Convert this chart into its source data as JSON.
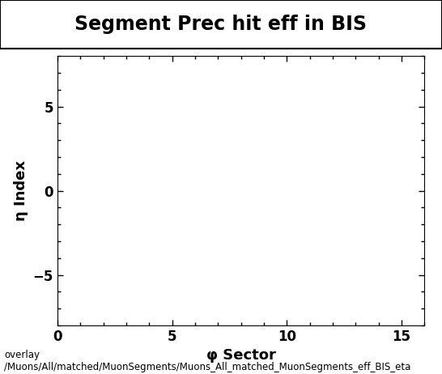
{
  "title": "Segment Prec hit eff in BIS",
  "xlabel": "φ Sector",
  "ylabel": "η Index",
  "xlim": [
    0,
    16
  ],
  "ylim": [
    -8,
    8
  ],
  "xticks": [
    0,
    5,
    10,
    15
  ],
  "yticks": [
    -5,
    0,
    5
  ],
  "background_color": "#ffffff",
  "plot_bg_color": "#ffffff",
  "title_fontsize": 17,
  "axis_label_fontsize": 13,
  "tick_fontsize": 12,
  "footer_line1": "overlay",
  "footer_line2": "/Muons/All/matched/MuonSegments/Muons_All_matched_MuonSegments_eff_BIS_eta",
  "footer_fontsize": 8.5
}
